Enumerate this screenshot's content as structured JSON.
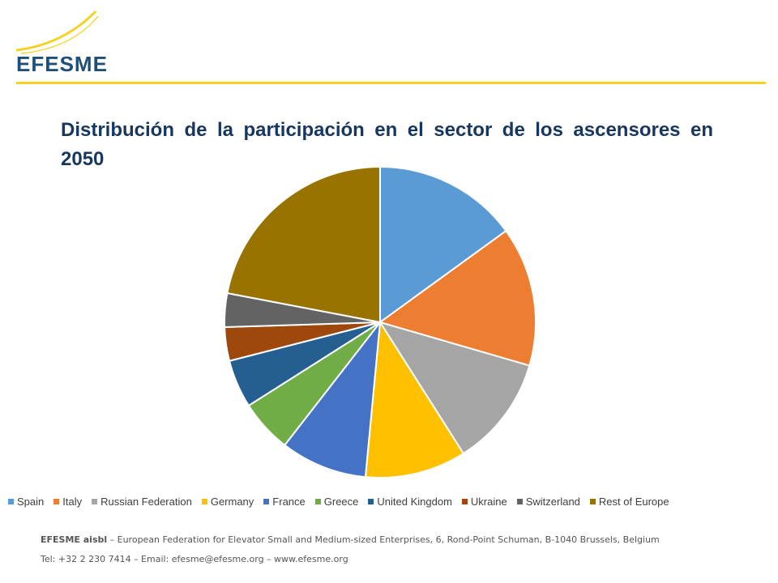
{
  "logo": {
    "text": "EFESME",
    "accent": "#f5d21f",
    "text_color": "#1f4e79"
  },
  "title": "Distribución de la participación en el sector de los ascensores en 2050",
  "chart_data": {
    "type": "pie",
    "title": "Distribución de la participación en el sector de los ascensores en 2050",
    "start_angle_deg": 0,
    "direction": "clockwise",
    "slices": [
      {
        "label": "Spain",
        "value": 15.0,
        "color": "#5b9bd5"
      },
      {
        "label": "Italy",
        "value": 14.5,
        "color": "#ed7d31"
      },
      {
        "label": "Russian Federation",
        "value": 11.5,
        "color": "#a5a5a5"
      },
      {
        "label": "Germany",
        "value": 10.5,
        "color": "#ffc000"
      },
      {
        "label": "France",
        "value": 9.0,
        "color": "#4472c4"
      },
      {
        "label": "Greece",
        "value": 5.5,
        "color": "#70ad47"
      },
      {
        "label": "United Kingdom",
        "value": 5.0,
        "color": "#255e91"
      },
      {
        "label": "Ukraine",
        "value": 3.5,
        "color": "#9e480e"
      },
      {
        "label": "Switzerland",
        "value": 3.5,
        "color": "#636363"
      },
      {
        "label": "Rest of Europe",
        "value": 22.0,
        "color": "#997300"
      }
    ],
    "legend_position": "bottom"
  },
  "footer": {
    "org_bold": "EFESME aisbl",
    "org_rest": " – European Federation for Elevator Small and Medium-sized Enterprises, 6, Rond-Point Schuman, B-1040 Brussels, Belgium",
    "contact": "Tel: +32 2 230 7414 – Email: efesme@efesme.org – www.efesme.org"
  }
}
